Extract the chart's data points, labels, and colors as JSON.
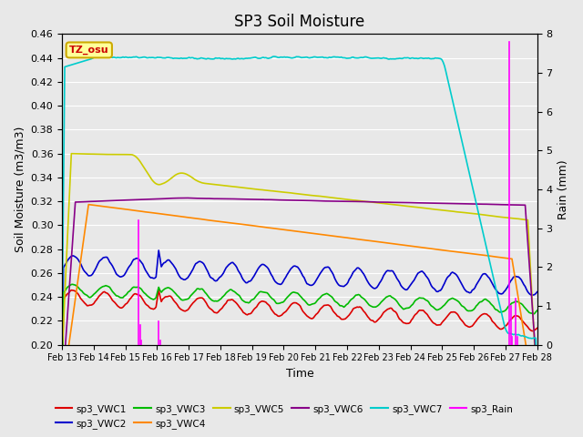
{
  "title": "SP3 Soil Moisture",
  "xlabel": "Time",
  "ylabel_left": "Soil Moisture (m3/m3)",
  "ylabel_right": "Rain (mm)",
  "ylim_left": [
    0.2,
    0.46
  ],
  "ylim_right": [
    0.0,
    8.0
  ],
  "date_start": 13,
  "date_end": 28,
  "background_color": "#e8e8e8",
  "annotation_text": "TZ_osu",
  "annotation_color": "#cc0000",
  "annotation_bg": "#ffff99",
  "annotation_border": "#ccaa00",
  "series_colors": {
    "sp3_VWC1": "#dd0000",
    "sp3_VWC2": "#0000cc",
    "sp3_VWC3": "#00bb00",
    "sp3_VWC4": "#ff8800",
    "sp3_VWC5": "#cccc00",
    "sp3_VWC6": "#880088",
    "sp3_VWC7": "#00cccc",
    "sp3_Rain": "#ff00ff"
  },
  "right_yticks": [
    0.0,
    1.0,
    2.0,
    3.0,
    4.0,
    5.0,
    6.0,
    7.0,
    8.0
  ],
  "left_yticks": [
    0.2,
    0.22,
    0.24,
    0.26,
    0.28,
    0.3,
    0.32,
    0.34,
    0.36,
    0.38,
    0.4,
    0.42,
    0.44,
    0.46
  ]
}
